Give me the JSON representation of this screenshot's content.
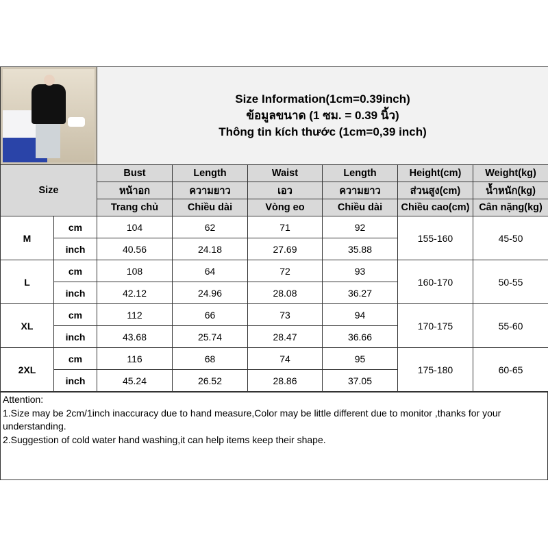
{
  "title": [
    "Size Information(1cm=0.39inch)",
    "ข้อมูลขนาด (1 ซม. = 0.39 นิ้ว)",
    "Thông tin kích thước (1cm=0,39 inch)"
  ],
  "size_label": "Size",
  "headers": [
    [
      "Bust",
      "Length",
      "Waist",
      "Length",
      "Height(cm)",
      "Weight(kg)"
    ],
    [
      "หน้าอก",
      "ความยาว",
      "เอว",
      "ความยาว",
      "ส่วนสูง(cm)",
      "น้ำหนัก(kg)"
    ],
    [
      "Trang chủ",
      "Chiều dài",
      "Vòng eo",
      "Chiều dài",
      "Chiều cao(cm)",
      "Cân nặng(kg)"
    ]
  ],
  "units": [
    "cm",
    "inch"
  ],
  "rows": [
    {
      "size": "M",
      "cm": [
        "104",
        "62",
        "71",
        "92"
      ],
      "inch": [
        "40.56",
        "24.18",
        "27.69",
        "35.88"
      ],
      "height": "155-160",
      "weight": "45-50"
    },
    {
      "size": "L",
      "cm": [
        "108",
        "64",
        "72",
        "93"
      ],
      "inch": [
        "42.12",
        "24.96",
        "28.08",
        "36.27"
      ],
      "height": "160-170",
      "weight": "50-55"
    },
    {
      "size": "XL",
      "cm": [
        "112",
        "66",
        "73",
        "94"
      ],
      "inch": [
        "43.68",
        "25.74",
        "28.47",
        "36.66"
      ],
      "height": "170-175",
      "weight": "55-60"
    },
    {
      "size": "2XL",
      "cm": [
        "116",
        "68",
        "74",
        "95"
      ],
      "inch": [
        "45.24",
        "26.52",
        "28.86",
        "37.05"
      ],
      "height": "175-180",
      "weight": "60-65"
    }
  ],
  "attention": [
    "Attention:",
    "1.Size may be 2cm/1inch inaccuracy due to hand measure,Color may be little different due to monitor ,thanks for your understanding.",
    "2.Suggestion of cold water hand washing,it can help items keep their shape."
  ]
}
